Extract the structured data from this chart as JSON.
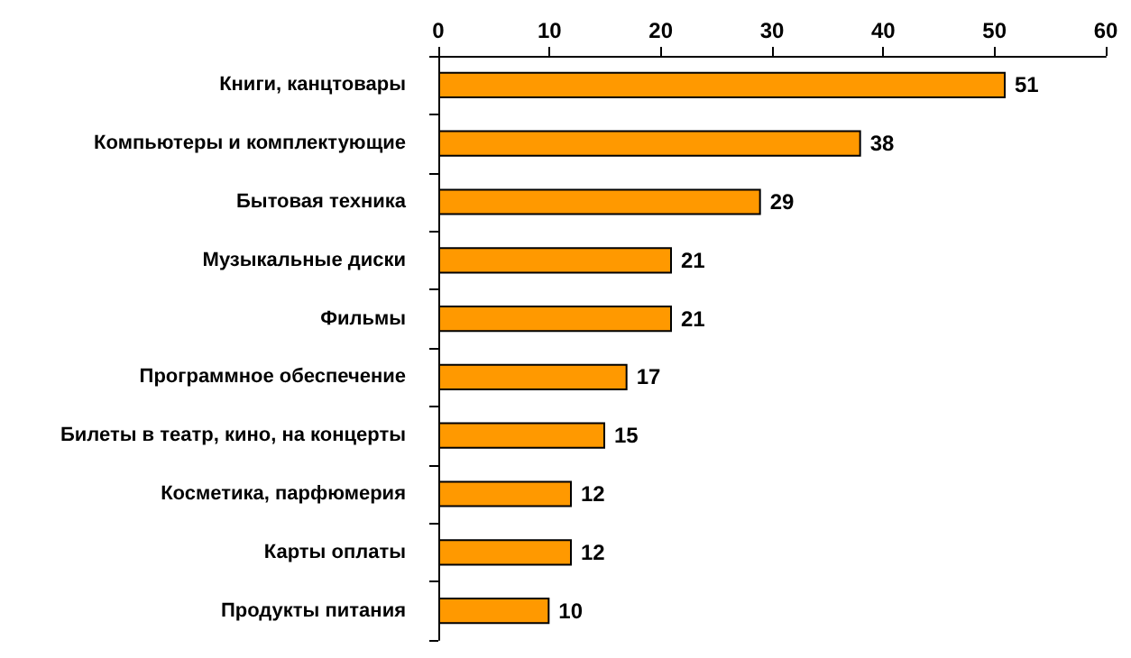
{
  "chart_data": {
    "type": "bar",
    "orientation": "horizontal",
    "categories": [
      "Книги, канцтовары",
      "Компьютеры и комплектующие",
      "Бытовая техника",
      "Музыкальные диски",
      "Фильмы",
      "Программное обеспечение",
      "Билеты в театр, кино, на концерты",
      "Косметика, парфюмерия",
      "Карты оплаты",
      "Продукты питания"
    ],
    "values": [
      51,
      38,
      29,
      21,
      21,
      17,
      15,
      12,
      12,
      10
    ],
    "color": "#ff9900",
    "xlim": [
      0,
      60
    ],
    "xticks": [
      0,
      10,
      20,
      30,
      40,
      50,
      60
    ],
    "grid": false,
    "data_labels": true
  }
}
